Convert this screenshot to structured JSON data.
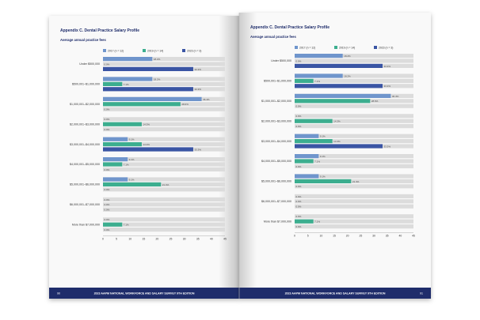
{
  "colors": {
    "background": "#ffffff",
    "page": "#f9f9f9",
    "title": "#1f2d6b",
    "footer_band": "#1f2d6b",
    "track": "#dcdcdc",
    "series_2017": "#6f95cc",
    "series_2019": "#3cae8f",
    "series_2023": "#3a55a4",
    "label_text": "#333333",
    "value_text": "#4a4a4a"
  },
  "pages": [
    {
      "heading": "Appendix C. Dental Practice Salary Profile",
      "subheading": "Average annual practice fees",
      "page_number": "90",
      "footer": "2023 AAPM NATIONAL WORKFORCE AND SALARY SURVEY 9TH EDITION"
    },
    {
      "heading": "Appendix C. Dental Practice Salary Profile",
      "subheading": "Average annual practice fees",
      "page_number": "91",
      "footer": "2023 AAPM NATIONAL WORKFORCE AND SALARY SURVEY 9TH EDITION"
    }
  ],
  "chart_data": {
    "type": "bar",
    "orientation": "horizontal",
    "title": "Average annual practice fees",
    "xlim": [
      0,
      45
    ],
    "x_ticks": [
      "0",
      "5",
      "10",
      "15",
      "20",
      "25",
      "30",
      "35",
      "40",
      "45"
    ],
    "grid": false,
    "legend_position": "top",
    "categories": [
      "Under $500,000",
      "$500,001–$1,000,000",
      "$1,000,001–$2,000,000",
      "$2,000,001–$3,000,000",
      "$3,000,001–$4,000,000",
      "$4,000,001–$5,000,000",
      "$5,000,001–$6,000,000",
      "$6,000,001–$7,000,000",
      "More than $7,000,000"
    ],
    "series": [
      {
        "name": "2017 (n = 12)",
        "values": [
          18.2,
          18.2,
          36.4,
          0,
          9.1,
          9.1,
          9.1,
          0,
          0
        ],
        "labels": [
          "18.2%",
          "18.2%",
          "36.4%",
          "0.0%",
          "9.1%",
          "9.1%",
          "9.1%",
          "0.0%",
          "0.0%"
        ]
      },
      {
        "name": "2019 (n = 14)",
        "values": [
          0,
          7.1,
          28.6,
          14.3,
          14.3,
          7.1,
          21.4,
          0,
          7.1
        ],
        "labels": [
          "0.0%",
          "7.1%",
          "28.6%",
          "14.3%",
          "14.3%",
          "7.1%",
          "21.4%",
          "0.0%",
          "7.1%"
        ]
      },
      {
        "name": "2023 (n = 3)",
        "values": [
          33.3,
          33.3,
          0,
          0,
          33.3,
          0,
          0,
          0,
          0
        ],
        "labels": [
          "33.3%",
          "33.3%",
          "0.0%",
          "0.0%",
          "33.3%",
          "0.0%",
          "0.0%",
          "0.0%",
          "0.0%"
        ]
      }
    ]
  }
}
